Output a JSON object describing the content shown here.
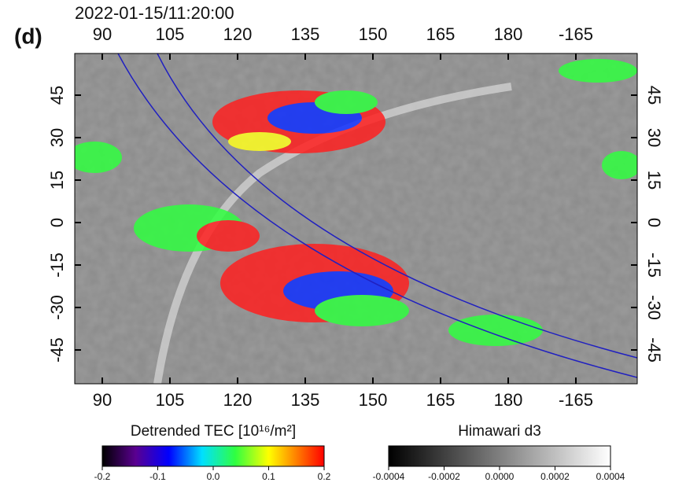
{
  "panel_label": "(d)",
  "timestamp": "2022-01-15/11:20:00",
  "map": {
    "lon_ticks": [
      90,
      105,
      120,
      135,
      150,
      165,
      180,
      -165
    ],
    "lat_ticks": [
      45,
      30,
      15,
      0,
      -15,
      -30,
      -45
    ]
  },
  "colorbars": [
    {
      "title": "Detrended TEC [10¹⁶/m²]",
      "range": [
        -0.2,
        0.2
      ],
      "ticks": [
        {
          "value": -0.2,
          "label": "-0.2"
        },
        {
          "value": -0.1,
          "label": "-0.1"
        },
        {
          "value": 0,
          "label": "0.0"
        },
        {
          "value": 0.1,
          "label": "0.1"
        },
        {
          "value": 0.2,
          "label": "0.2"
        }
      ]
    },
    {
      "title": "Himawari d3",
      "range": [
        -0.0004,
        0.0004
      ],
      "ticks": [
        {
          "value": -0.0004,
          "label": "-0.0004"
        },
        {
          "value": -0.0002,
          "label": "-0.0002"
        },
        {
          "value": 0,
          "label": "0.0000"
        },
        {
          "value": 0.0002,
          "label": "0.0002"
        },
        {
          "value": 0.0004,
          "label": "0.0004"
        }
      ]
    }
  ]
}
